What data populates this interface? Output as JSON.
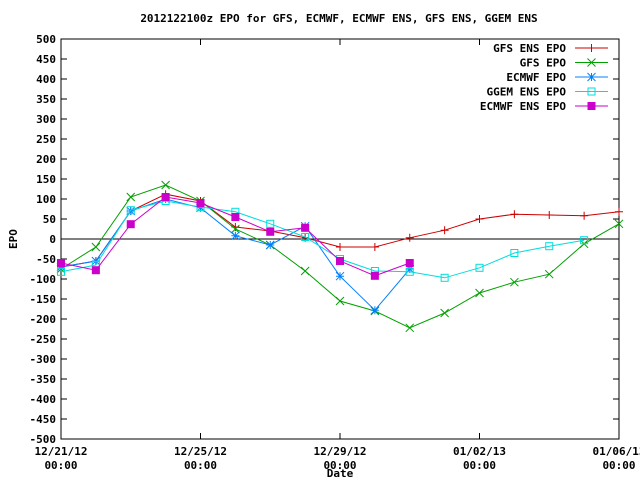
{
  "chart_data": {
    "type": "line",
    "title": "2012122100z EPO for GFS, ECMWF, ECMWF ENS, GFS ENS, GGEM ENS",
    "xlabel": "Date",
    "ylabel": "EPO",
    "xlim": [
      "2012-12-21 00:00",
      "2013-01-06 00:00"
    ],
    "ylim": [
      -500,
      500
    ],
    "yticks": [
      -500,
      -450,
      -400,
      -350,
      -300,
      -250,
      -200,
      -150,
      -100,
      -50,
      0,
      50,
      100,
      150,
      200,
      250,
      300,
      350,
      400,
      450,
      500
    ],
    "xticks": [
      {
        "date": "2012-12-21 00:00",
        "line1": "12/21/12",
        "line2": "00:00"
      },
      {
        "date": "2012-12-25 00:00",
        "line1": "12/25/12",
        "line2": "00:00"
      },
      {
        "date": "2012-12-29 00:00",
        "line1": "12/29/12",
        "line2": "00:00"
      },
      {
        "date": "2013-01-02 00:00",
        "line1": "01/02/13",
        "line2": "00:00"
      },
      {
        "date": "2013-01-06 00:00",
        "line1": "01/06/13",
        "line2": "00:00"
      }
    ],
    "zero_line": true,
    "grid": false,
    "legend_position": "top-right",
    "series": [
      {
        "name": "GFS ENS EPO",
        "color": "#cc0000",
        "marker": "plus",
        "x": [
          "2012-12-21 00:00",
          "2012-12-22 00:00",
          "2012-12-23 00:00",
          "2012-12-24 00:00",
          "2012-12-25 00:00",
          "2012-12-26 00:00",
          "2012-12-27 00:00",
          "2012-12-28 00:00",
          "2012-12-29 00:00",
          "2012-12-30 00:00",
          "2012-12-31 00:00",
          "2013-01-01 00:00",
          "2013-01-02 00:00",
          "2013-01-03 00:00",
          "2013-01-04 00:00",
          "2013-01-05 00:00",
          "2013-01-06 00:00"
        ],
        "y": [
          -70,
          -55,
          70,
          112,
          95,
          30,
          20,
          3,
          -20,
          -20,
          3,
          22,
          50,
          62,
          60,
          58,
          68
        ]
      },
      {
        "name": "GFS EPO",
        "color": "#00a000",
        "marker": "cross",
        "x": [
          "2012-12-21 00:00",
          "2012-12-22 00:00",
          "2012-12-23 00:00",
          "2012-12-24 00:00",
          "2012-12-25 00:00",
          "2012-12-26 00:00",
          "2012-12-27 00:00",
          "2012-12-28 00:00",
          "2012-12-29 00:00",
          "2012-12-30 00:00",
          "2012-12-31 00:00",
          "2013-01-01 00:00",
          "2013-01-02 00:00",
          "2013-01-03 00:00",
          "2013-01-04 00:00",
          "2013-01-05 00:00",
          "2013-01-06 00:00"
        ],
        "y": [
          -75,
          -20,
          105,
          135,
          95,
          25,
          -15,
          -80,
          -155,
          -180,
          -222,
          -185,
          -135,
          -108,
          -88,
          -12,
          38
        ]
      },
      {
        "name": "ECMWF EPO",
        "color": "#0080ff",
        "marker": "star",
        "x": [
          "2012-12-21 00:00",
          "2012-12-22 00:00",
          "2012-12-23 00:00",
          "2012-12-24 00:00",
          "2012-12-25 00:00",
          "2012-12-26 00:00",
          "2012-12-27 00:00",
          "2012-12-28 00:00",
          "2012-12-29 00:00",
          "2012-12-30 00:00",
          "2012-12-31 00:00"
        ],
        "y": [
          -70,
          -55,
          70,
          100,
          78,
          8,
          -15,
          32,
          -93,
          -178,
          -75
        ]
      },
      {
        "name": "GGEM ENS EPO",
        "color": "#00dddd",
        "marker": "open-square",
        "x": [
          "2012-12-21 00:00",
          "2012-12-22 00:00",
          "2012-12-23 00:00",
          "2012-12-24 00:00",
          "2012-12-25 00:00",
          "2012-12-26 00:00",
          "2012-12-27 00:00",
          "2012-12-28 00:00",
          "2012-12-29 00:00",
          "2012-12-30 00:00",
          "2012-12-31 00:00",
          "2013-01-01 00:00",
          "2013-01-02 00:00",
          "2013-01-03 00:00",
          "2013-01-04 00:00",
          "2013-01-05 00:00"
        ],
        "y": [
          -82,
          -65,
          72,
          95,
          80,
          68,
          38,
          5,
          -50,
          -80,
          -82,
          -97,
          -72,
          -35,
          -18,
          -3
        ]
      },
      {
        "name": "ECMWF ENS EPO",
        "color": "#cc00cc",
        "marker": "filled-square",
        "x": [
          "2012-12-21 00:00",
          "2012-12-22 00:00",
          "2012-12-23 00:00",
          "2012-12-24 00:00",
          "2012-12-25 00:00",
          "2012-12-26 00:00",
          "2012-12-27 00:00",
          "2012-12-28 00:00",
          "2012-12-29 00:00",
          "2012-12-30 00:00",
          "2012-12-31 00:00"
        ],
        "y": [
          -60,
          -78,
          37,
          105,
          90,
          55,
          18,
          28,
          -55,
          -92,
          -60
        ]
      }
    ]
  }
}
